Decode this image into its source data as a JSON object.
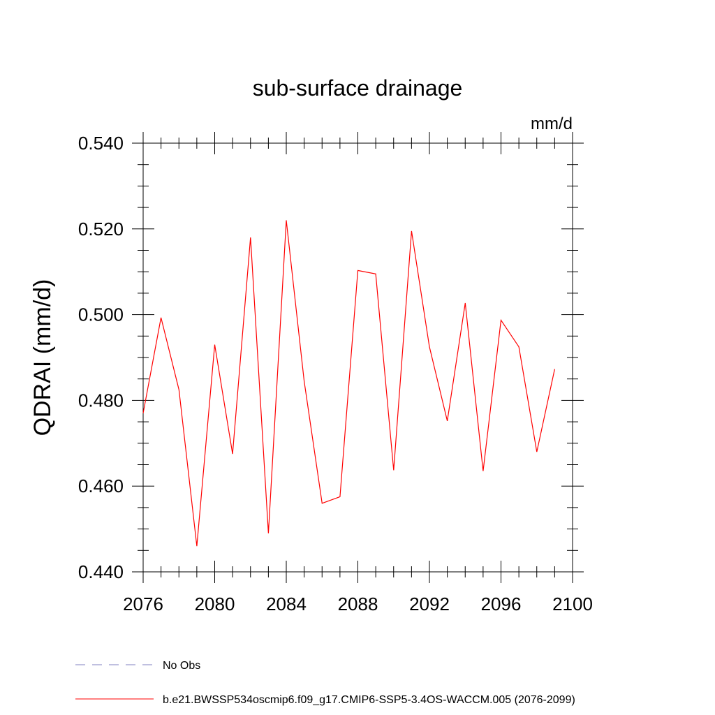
{
  "chart_data": {
    "type": "line",
    "title": "sub-surface drainage",
    "units": "mm/d",
    "ylabel": "QDRAI  (mm/d)",
    "xlabel": "",
    "xlim": [
      2076,
      2100
    ],
    "ylim": [
      0.44,
      0.54
    ],
    "x_ticks": [
      2076,
      2080,
      2084,
      2088,
      2092,
      2096,
      2100
    ],
    "y_ticks": [
      "0.440",
      "0.460",
      "0.480",
      "0.500",
      "0.520",
      "0.540"
    ],
    "grid": false,
    "legend_position": "bottom-left",
    "series": [
      {
        "name": "No Obs",
        "color": "#8080c0",
        "dash": "dashed",
        "x": [],
        "y": []
      },
      {
        "name": "b.e21.BWSSP534oscmip6.f09_g17.CMIP6-SSP5-3.4OS-WACCM.005 (2076-2099)",
        "color": "#ff0000",
        "dash": "solid",
        "x": [
          2076,
          2077,
          2078,
          2079,
          2080,
          2081,
          2082,
          2083,
          2084,
          2085,
          2086,
          2087,
          2088,
          2089,
          2090,
          2091,
          2092,
          2093,
          2094,
          2095,
          2096,
          2097,
          2098,
          2099
        ],
        "y": [
          0.477,
          0.4993,
          0.4825,
          0.446,
          0.493,
          0.4675,
          0.518,
          0.449,
          0.522,
          0.4845,
          0.456,
          0.4575,
          0.5103,
          0.5095,
          0.4637,
          0.5195,
          0.4925,
          0.4752,
          0.5027,
          0.4635,
          0.4987,
          0.4925,
          0.468,
          0.4873
        ]
      }
    ]
  }
}
